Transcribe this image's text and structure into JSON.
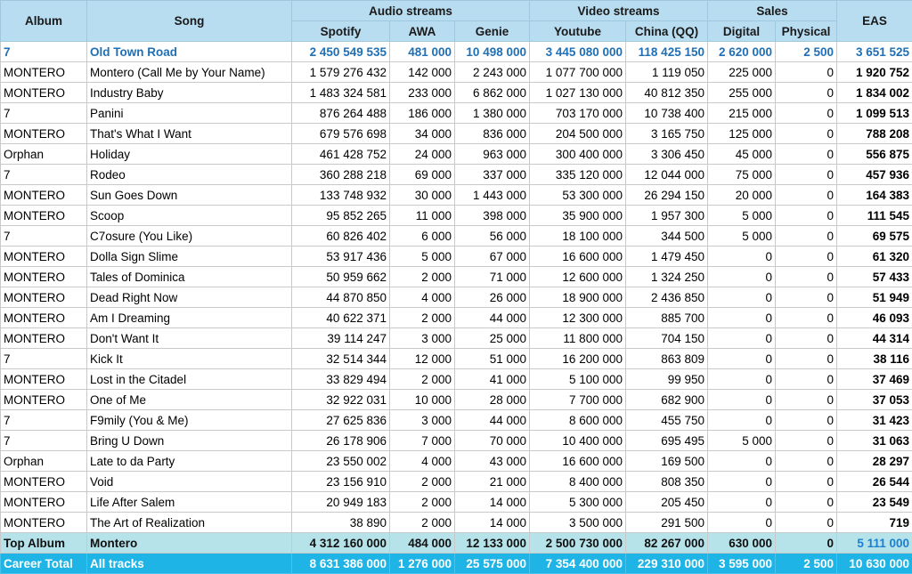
{
  "headers": {
    "album": "Album",
    "song": "Song",
    "audio_group": "Audio streams",
    "video_group": "Video streams",
    "sales_group": "Sales",
    "eas": "EAS",
    "spotify": "Spotify",
    "awa": "AWA",
    "genie": "Genie",
    "youtube": "Youtube",
    "china": "China (QQ)",
    "digital": "Digital",
    "physical": "Physical"
  },
  "rows": [
    {
      "album": "7",
      "song": "Old Town Road",
      "spotify": "2 450 549 535",
      "awa": "481 000",
      "genie": "10 498 000",
      "youtube": "3 445 080 000",
      "china": "118 425 150",
      "digital": "2 620 000",
      "physical": "2 500",
      "eas": "3 651 525"
    },
    {
      "album": "MONTERO",
      "song": "Montero (Call Me by Your Name)",
      "spotify": "1 579 276 432",
      "awa": "142 000",
      "genie": "2 243 000",
      "youtube": "1 077 700 000",
      "china": "1 119 050",
      "digital": "225 000",
      "physical": "0",
      "eas": "1 920 752"
    },
    {
      "album": "MONTERO",
      "song": "Industry Baby",
      "spotify": "1 483 324 581",
      "awa": "233 000",
      "genie": "6 862 000",
      "youtube": "1 027 130 000",
      "china": "40 812 350",
      "digital": "255 000",
      "physical": "0",
      "eas": "1 834 002"
    },
    {
      "album": "7",
      "song": "Panini",
      "spotify": "876 264 488",
      "awa": "186 000",
      "genie": "1 380 000",
      "youtube": "703 170 000",
      "china": "10 738 400",
      "digital": "215 000",
      "physical": "0",
      "eas": "1 099 513"
    },
    {
      "album": "MONTERO",
      "song": "That's What I Want",
      "spotify": "679 576 698",
      "awa": "34 000",
      "genie": "836 000",
      "youtube": "204 500 000",
      "china": "3 165 750",
      "digital": "125 000",
      "physical": "0",
      "eas": "788 208"
    },
    {
      "album": "Orphan",
      "song": "Holiday",
      "spotify": "461 428 752",
      "awa": "24 000",
      "genie": "963 000",
      "youtube": "300 400 000",
      "china": "3 306 450",
      "digital": "45 000",
      "physical": "0",
      "eas": "556 875"
    },
    {
      "album": "7",
      "song": "Rodeo",
      "spotify": "360 288 218",
      "awa": "69 000",
      "genie": "337 000",
      "youtube": "335 120 000",
      "china": "12 044 000",
      "digital": "75 000",
      "physical": "0",
      "eas": "457 936"
    },
    {
      "album": "MONTERO",
      "song": "Sun Goes Down",
      "spotify": "133 748 932",
      "awa": "30 000",
      "genie": "1 443 000",
      "youtube": "53 300 000",
      "china": "26 294 150",
      "digital": "20 000",
      "physical": "0",
      "eas": "164 383"
    },
    {
      "album": "MONTERO",
      "song": "Scoop",
      "spotify": "95 852 265",
      "awa": "11 000",
      "genie": "398 000",
      "youtube": "35 900 000",
      "china": "1 957 300",
      "digital": "5 000",
      "physical": "0",
      "eas": "111 545"
    },
    {
      "album": "7",
      "song": "C7osure (You Like)",
      "spotify": "60 826 402",
      "awa": "6 000",
      "genie": "56 000",
      "youtube": "18 100 000",
      "china": "344 500",
      "digital": "5 000",
      "physical": "0",
      "eas": "69 575"
    },
    {
      "album": "MONTERO",
      "song": "Dolla Sign Slime",
      "spotify": "53 917 436",
      "awa": "5 000",
      "genie": "67 000",
      "youtube": "16 600 000",
      "china": "1 479 450",
      "digital": "0",
      "physical": "0",
      "eas": "61 320"
    },
    {
      "album": "MONTERO",
      "song": "Tales of Dominica",
      "spotify": "50 959 662",
      "awa": "2 000",
      "genie": "71 000",
      "youtube": "12 600 000",
      "china": "1 324 250",
      "digital": "0",
      "physical": "0",
      "eas": "57 433"
    },
    {
      "album": "MONTERO",
      "song": "Dead Right Now",
      "spotify": "44 870 850",
      "awa": "4 000",
      "genie": "26 000",
      "youtube": "18 900 000",
      "china": "2 436 850",
      "digital": "0",
      "physical": "0",
      "eas": "51 949"
    },
    {
      "album": "MONTERO",
      "song": "Am I Dreaming",
      "spotify": "40 622 371",
      "awa": "2 000",
      "genie": "44 000",
      "youtube": "12 300 000",
      "china": "885 700",
      "digital": "0",
      "physical": "0",
      "eas": "46 093"
    },
    {
      "album": "MONTERO",
      "song": "Don't Want It",
      "spotify": "39 114 247",
      "awa": "3 000",
      "genie": "25 000",
      "youtube": "11 800 000",
      "china": "704 150",
      "digital": "0",
      "physical": "0",
      "eas": "44 314"
    },
    {
      "album": "7",
      "song": "Kick It",
      "spotify": "32 514 344",
      "awa": "12 000",
      "genie": "51 000",
      "youtube": "16 200 000",
      "china": "863 809",
      "digital": "0",
      "physical": "0",
      "eas": "38 116"
    },
    {
      "album": "MONTERO",
      "song": "Lost in the Citadel",
      "spotify": "33 829 494",
      "awa": "2 000",
      "genie": "41 000",
      "youtube": "5 100 000",
      "china": "99 950",
      "digital": "0",
      "physical": "0",
      "eas": "37 469"
    },
    {
      "album": "MONTERO",
      "song": "One of Me",
      "spotify": "32 922 031",
      "awa": "10 000",
      "genie": "28 000",
      "youtube": "7 700 000",
      "china": "682 900",
      "digital": "0",
      "physical": "0",
      "eas": "37 053"
    },
    {
      "album": "7",
      "song": "F9mily (You & Me)",
      "spotify": "27 625 836",
      "awa": "3 000",
      "genie": "44 000",
      "youtube": "8 600 000",
      "china": "455 750",
      "digital": "0",
      "physical": "0",
      "eas": "31 423"
    },
    {
      "album": "7",
      "song": "Bring U Down",
      "spotify": "26 178 906",
      "awa": "7 000",
      "genie": "70 000",
      "youtube": "10 400 000",
      "china": "695 495",
      "digital": "5 000",
      "physical": "0",
      "eas": "31 063"
    },
    {
      "album": "Orphan",
      "song": "Late to da Party",
      "spotify": "23 550 002",
      "awa": "4 000",
      "genie": "43 000",
      "youtube": "16 600 000",
      "china": "169 500",
      "digital": "0",
      "physical": "0",
      "eas": "28 297"
    },
    {
      "album": "MONTERO",
      "song": "Void",
      "spotify": "23 156 910",
      "awa": "2 000",
      "genie": "21 000",
      "youtube": "8 400 000",
      "china": "808 350",
      "digital": "0",
      "physical": "0",
      "eas": "26 544"
    },
    {
      "album": "MONTERO",
      "song": "Life After Salem",
      "spotify": "20 949 183",
      "awa": "2 000",
      "genie": "14 000",
      "youtube": "5 300 000",
      "china": "205 450",
      "digital": "0",
      "physical": "0",
      "eas": "23 549"
    },
    {
      "album": "MONTERO",
      "song": "The Art of Realization",
      "spotify": "38 890",
      "awa": "2 000",
      "genie": "14 000",
      "youtube": "3 500 000",
      "china": "291 500",
      "digital": "0",
      "physical": "0",
      "eas": "719"
    }
  ],
  "top_album": {
    "album": "Top Album",
    "song": "Montero",
    "spotify": "4 312 160 000",
    "awa": "484 000",
    "genie": "12 133 000",
    "youtube": "2 500 730 000",
    "china": "82 267 000",
    "digital": "630 000",
    "physical": "0",
    "eas": "5 111 000"
  },
  "career_total": {
    "album": "Career Total",
    "song": "All tracks",
    "spotify": "8 631 386 000",
    "awa": "1 276 000",
    "genie": "25 575 000",
    "youtube": "7 354 400 000",
    "china": "229 310 000",
    "digital": "3 595 000",
    "physical": "2 500",
    "eas": "10 630 000"
  },
  "colors": {
    "header_bg": "#b8dcf0",
    "top_row_text": "#1f6fb5",
    "top_album_bg": "#b6e3ea",
    "career_bg": "#1eb4e6"
  }
}
